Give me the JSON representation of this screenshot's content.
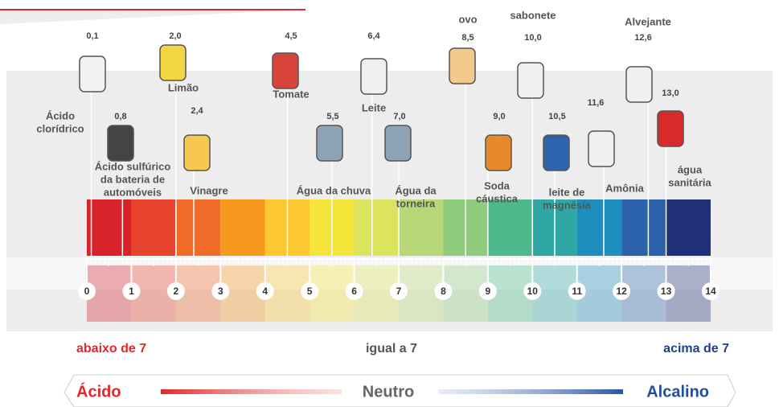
{
  "scale": {
    "min": 0,
    "max": 14,
    "ticks": [
      0,
      1,
      2,
      3,
      4,
      5,
      6,
      7,
      8,
      9,
      10,
      11,
      12,
      13,
      14
    ],
    "colors": [
      "#d8232a",
      "#e8432c",
      "#ef6b27",
      "#f7981f",
      "#fdc730",
      "#f5e43a",
      "#dce35f",
      "#b8d776",
      "#8ecb7c",
      "#4cb98d",
      "#2fa8a5",
      "#1c8dbd",
      "#2b62ab",
      "#1f2f78"
    ]
  },
  "items": [
    {
      "name": [
        "Ácido",
        "clorídrico"
      ],
      "ph": {
        "value": 0.1,
        "label": "0,1"
      }
    },
    {
      "name": [
        "Ácido sulfúrico",
        "da bateria de",
        "automóveis"
      ],
      "ph": {
        "value": 0.8,
        "label": "0,8"
      }
    },
    {
      "name": [
        "Limão"
      ],
      "ph": {
        "value": 2.0,
        "label": "2,0"
      }
    },
    {
      "name": [
        "Vinagre"
      ],
      "ph": {
        "value": 2.4,
        "label": "2,4"
      }
    },
    {
      "name": [
        "Tomate"
      ],
      "ph": {
        "value": 4.5,
        "label": "4,5"
      }
    },
    {
      "name": [
        "Água da chuva"
      ],
      "ph": {
        "value": 5.5,
        "label": "5,5"
      }
    },
    {
      "name": [
        "Leite"
      ],
      "ph": {
        "value": 6.4,
        "label": "6,4"
      }
    },
    {
      "name": [
        "Água da",
        "torneira"
      ],
      "ph": {
        "value": 7.0,
        "label": "7,0"
      }
    },
    {
      "name": [
        "ovo"
      ],
      "ph": {
        "value": 8.5,
        "label": "8,5"
      }
    },
    {
      "name": [
        "Soda",
        "cáustica"
      ],
      "ph": {
        "value": 9.0,
        "label": "9,0"
      }
    },
    {
      "name": [
        "sabonete"
      ],
      "ph": {
        "value": 10.0,
        "label": "10,0"
      }
    },
    {
      "name": [
        "leite de",
        "magnésia"
      ],
      "ph": {
        "value": 10.5,
        "label": "10,5"
      }
    },
    {
      "name": [
        "Amônia"
      ],
      "ph": {
        "value": 11.6,
        "label": "11,6"
      }
    },
    {
      "name": [
        "Alvejante"
      ],
      "ph": {
        "value": 12.6,
        "label": "12,6"
      }
    },
    {
      "name": [
        "água",
        "sanitária"
      ],
      "ph": {
        "value": 13.0,
        "label": "13,0"
      }
    }
  ],
  "zones": {
    "below": "abaixo de 7",
    "equal": "igual a 7",
    "above": "acima de 7"
  },
  "footer": {
    "acid": "Ácido",
    "neutral": "Neutro",
    "alkaline": "Alcalino"
  }
}
